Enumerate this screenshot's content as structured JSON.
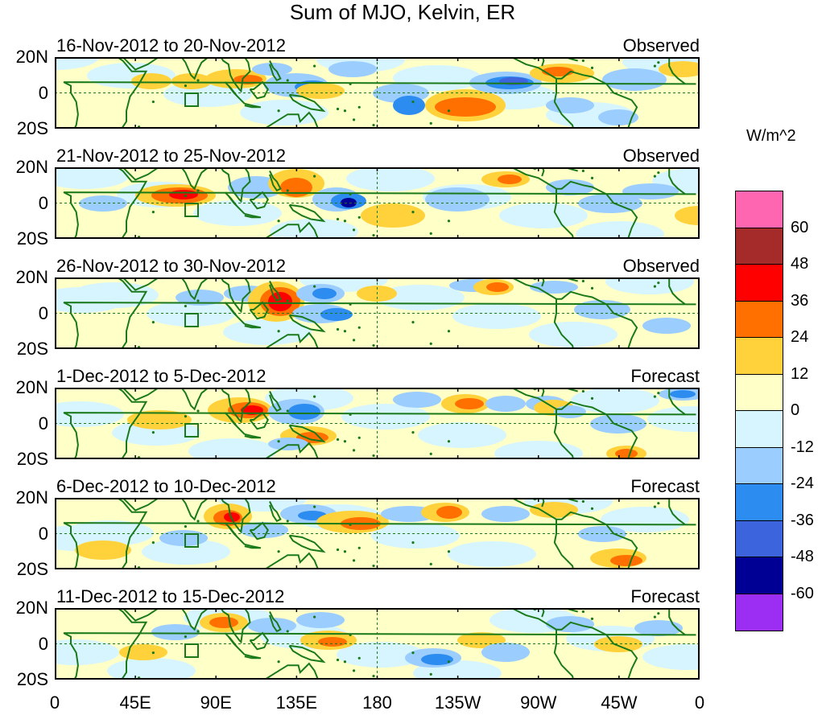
{
  "title": "Sum of MJO, Kelvin, ER",
  "colorbar": {
    "units": "W/m^2",
    "labels": [
      "60",
      "48",
      "36",
      "24",
      "12",
      "0",
      "-12",
      "-24",
      "-36",
      "-48",
      "-60"
    ],
    "colors": [
      "#ff66b2",
      "#a52a2a",
      "#ff0000",
      "#ff7000",
      "#ffd23c",
      "#ffffc8",
      "#d7f5ff",
      "#9ccdff",
      "#2d8cf0",
      "#3c64dc",
      "#000094",
      "#9b2ef2"
    ]
  },
  "lat_labels": [
    "20N",
    "0",
    "20S"
  ],
  "lon_labels": [
    "0",
    "45E",
    "90E",
    "135E",
    "180",
    "135W",
    "90W",
    "45W",
    "0"
  ],
  "panels": [
    {
      "period": "16-Nov-2012 to 20-Nov-2012",
      "status": "Observed"
    },
    {
      "period": "21-Nov-2012 to 25-Nov-2012",
      "status": "Observed"
    },
    {
      "period": "26-Nov-2012 to 30-Nov-2012",
      "status": "Observed"
    },
    {
      "period": "1-Dec-2012 to 5-Dec-2012",
      "status": "Forecast"
    },
    {
      "period": "6-Dec-2012 to 10-Dec-2012",
      "status": "Forecast"
    },
    {
      "period": "11-Dec-2012 to 15-Dec-2012",
      "status": "Forecast"
    }
  ]
}
